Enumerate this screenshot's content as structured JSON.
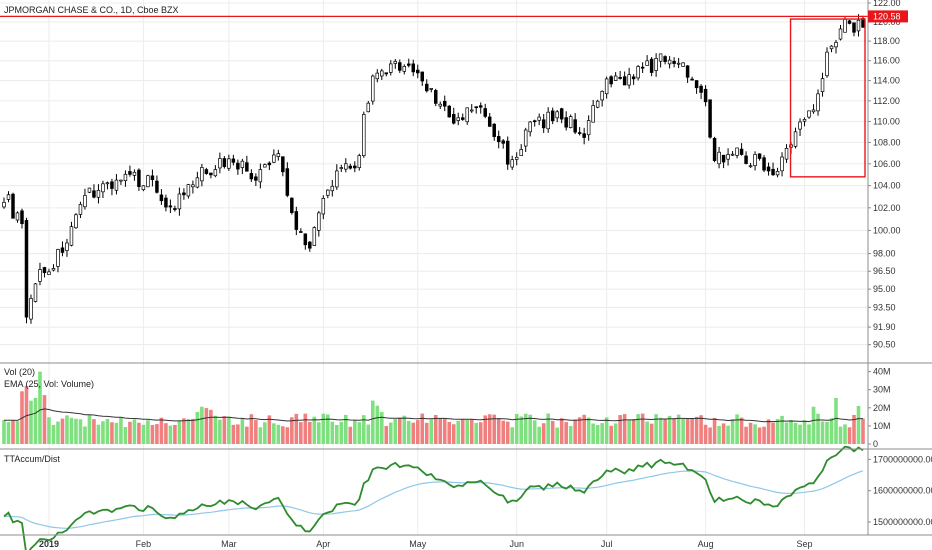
{
  "header": {
    "title": "JPMORGAN CHASE & CO., 1D, Cboe BZX"
  },
  "price_pane": {
    "y_ticks": [
      "122.00",
      "120.00",
      "118.00",
      "116.00",
      "114.00",
      "112.00",
      "110.00",
      "108.00",
      "106.00",
      "104.00",
      "102.00",
      "100.00",
      "98.00",
      "96.50",
      "95.00",
      "93.50",
      "91.90",
      "90.50"
    ],
    "last_price_label": "120.58",
    "resistance_line": 120.58,
    "highlight_box": {
      "x_from": "2019-08-29",
      "x_to": "2019-09-20",
      "y_from": 104.8,
      "y_to": 120.3
    }
  },
  "volume_pane": {
    "title": "Vol (20)",
    "ema_label": "EMA (25, Vol: Volume)",
    "y_ticks": [
      "40M",
      "30M",
      "20M",
      "10M",
      "0"
    ]
  },
  "indicator_pane": {
    "title": "TTAccum/Dist",
    "y_ticks": [
      "1700000000.00",
      "1600000000.00",
      "1500000000.00"
    ]
  },
  "x_axis": {
    "labels": [
      "2019",
      "Feb",
      "Mar",
      "Apr",
      "May",
      "Jun",
      "Jul",
      "Aug",
      "Sep"
    ]
  },
  "colors": {
    "up_candle": "#ffffff",
    "down_candle": "#000000",
    "vol_up": "#7ee07e",
    "vol_down": "#f08080",
    "ema": "#333333",
    "accum": "#2e8b2e",
    "accum_ma": "#8fc7e8",
    "annotation": "#e8151b"
  },
  "chart_data": {
    "type": "candlestick",
    "title": "JPMORGAN CHASE & CO., 1D, Cboe BZX",
    "x_labels": [
      "2019",
      "Feb",
      "Mar",
      "Apr",
      "May",
      "Jun",
      "Jul",
      "Aug",
      "Sep"
    ],
    "price_axis": {
      "range": [
        90.0,
        122.0
      ],
      "scale": "log"
    },
    "close_path": [
      {
        "date": "2018-12-17",
        "close": 103.2
      },
      {
        "date": "2018-12-21",
        "close": 100.3
      },
      {
        "date": "2018-12-24",
        "close": 92.1
      },
      {
        "date": "2018-12-27",
        "close": 96.0
      },
      {
        "date": "2019-01-03",
        "close": 97.1
      },
      {
        "date": "2019-01-10",
        "close": 100.7
      },
      {
        "date": "2019-01-15",
        "close": 103.5
      },
      {
        "date": "2019-01-25",
        "close": 104.6
      },
      {
        "date": "2019-02-05",
        "close": 104.5
      },
      {
        "date": "2019-02-11",
        "close": 101.7
      },
      {
        "date": "2019-02-22",
        "close": 105.5
      },
      {
        "date": "2019-03-04",
        "close": 106.5
      },
      {
        "date": "2019-03-11",
        "close": 104.5
      },
      {
        "date": "2019-03-18",
        "close": 107.1
      },
      {
        "date": "2019-03-22",
        "close": 100.1
      },
      {
        "date": "2019-03-27",
        "close": 99.0
      },
      {
        "date": "2019-04-03",
        "close": 104.5
      },
      {
        "date": "2019-04-11",
        "close": 106.2
      },
      {
        "date": "2019-04-12",
        "close": 111.0
      },
      {
        "date": "2019-04-16",
        "close": 113.9
      },
      {
        "date": "2019-04-26",
        "close": 115.9
      },
      {
        "date": "2019-05-06",
        "close": 113.0
      },
      {
        "date": "2019-05-13",
        "close": 109.6
      },
      {
        "date": "2019-05-20",
        "close": 111.6
      },
      {
        "date": "2019-05-31",
        "close": 106.0
      },
      {
        "date": "2019-06-06",
        "close": 109.5
      },
      {
        "date": "2019-06-14",
        "close": 110.6
      },
      {
        "date": "2019-06-24",
        "close": 109.0
      },
      {
        "date": "2019-07-01",
        "close": 113.5
      },
      {
        "date": "2019-07-12",
        "close": 115.0
      },
      {
        "date": "2019-07-22",
        "close": 116.6
      },
      {
        "date": "2019-07-31",
        "close": 113.6
      },
      {
        "date": "2019-08-05",
        "close": 106.6
      },
      {
        "date": "2019-08-12",
        "close": 107.1
      },
      {
        "date": "2019-08-23",
        "close": 105.4
      },
      {
        "date": "2019-08-28",
        "close": 108.0
      },
      {
        "date": "2019-09-05",
        "close": 111.8
      },
      {
        "date": "2019-09-10",
        "close": 116.5
      },
      {
        "date": "2019-09-13",
        "close": 119.6
      },
      {
        "date": "2019-09-20",
        "close": 119.8
      }
    ],
    "volume_axis": {
      "range": [
        0,
        42
      ],
      "unit": "M"
    },
    "accum_dist_axis": {
      "range": [
        1465000000,
        1730000000
      ]
    }
  }
}
